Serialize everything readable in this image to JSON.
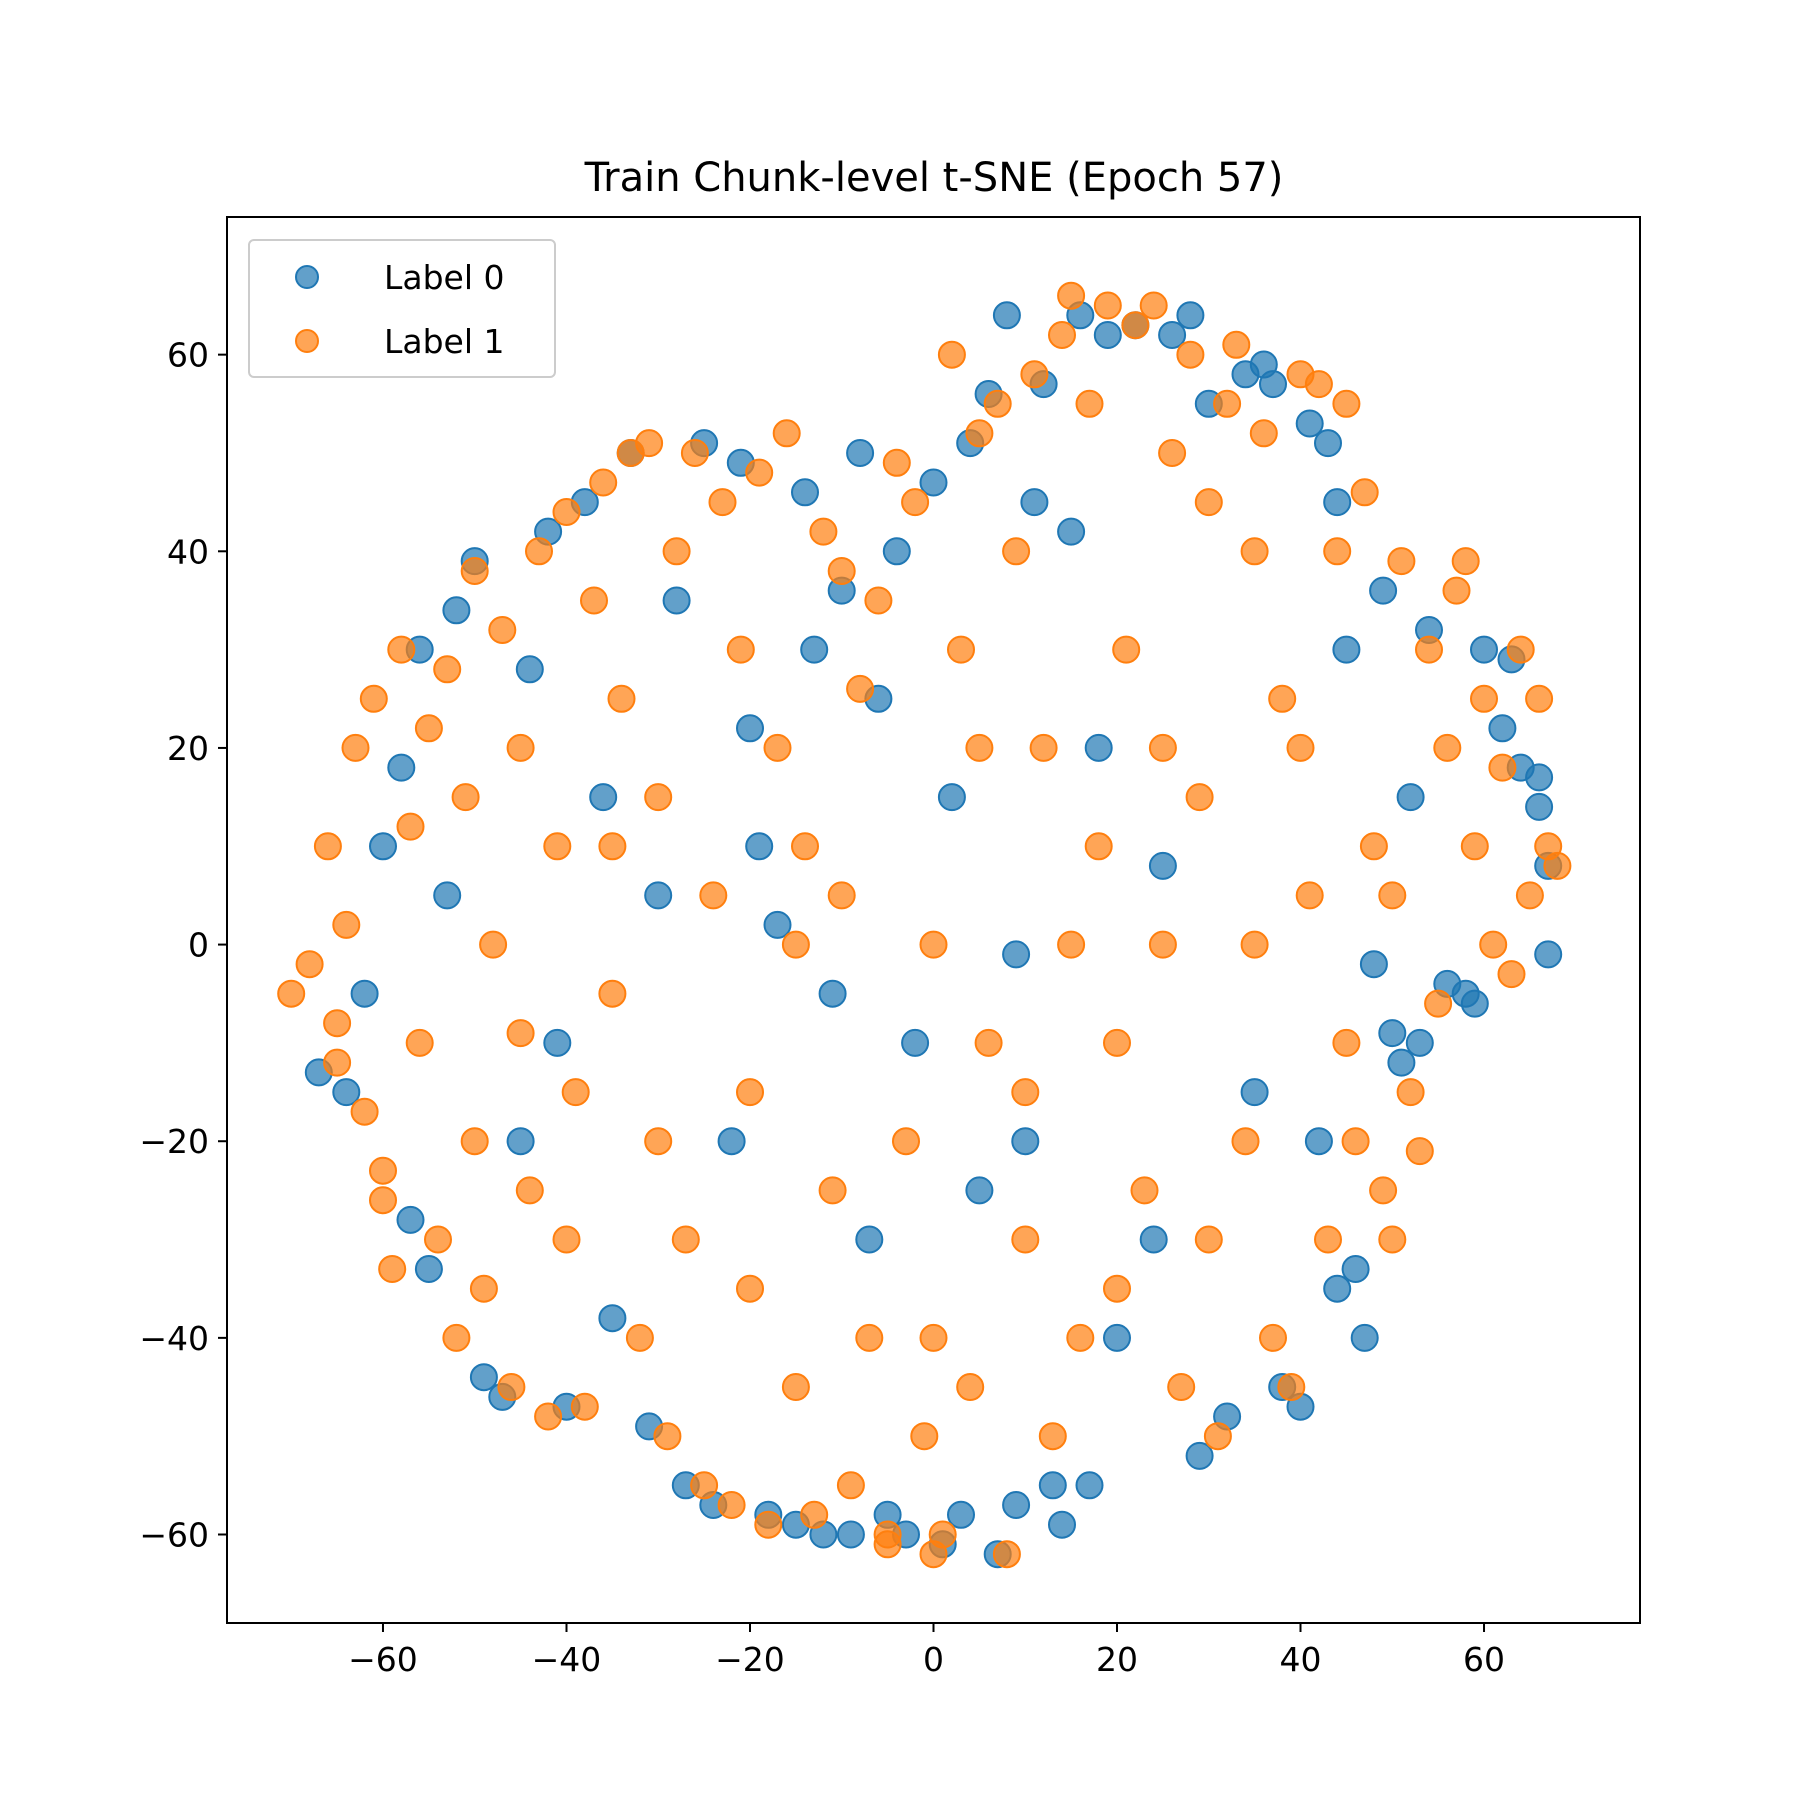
{
  "chart_data": {
    "type": "scatter",
    "title": "Train Chunk-level t-SNE (Epoch 57)",
    "xlabel": "",
    "ylabel": "",
    "xlim": [
      -77,
      77
    ],
    "ylim": [
      -69,
      74
    ],
    "xticks": [
      -60,
      -40,
      -20,
      0,
      20,
      40,
      60
    ],
    "yticks": [
      -60,
      -40,
      -20,
      0,
      20,
      40,
      60
    ],
    "xtick_labels": [
      "−60",
      "−40",
      "−20",
      "0",
      "20",
      "40",
      "60"
    ],
    "ytick_labels": [
      "−60",
      "−40",
      "−20",
      "0",
      "20",
      "40",
      "60"
    ],
    "grid": false,
    "legend_position": "upper-left",
    "series": [
      {
        "name": "Label 0",
        "color": "#1f77b4",
        "points": [
          [
            -67,
            -13
          ],
          [
            -64,
            -15
          ],
          [
            -62,
            -5
          ],
          [
            -60,
            10
          ],
          [
            -58,
            18
          ],
          [
            -57,
            -28
          ],
          [
            -56,
            30
          ],
          [
            -55,
            -33
          ],
          [
            -53,
            5
          ],
          [
            -52,
            34
          ],
          [
            -50,
            39
          ],
          [
            -49,
            -44
          ],
          [
            -47,
            -46
          ],
          [
            -45,
            -20
          ],
          [
            -44,
            28
          ],
          [
            -42,
            42
          ],
          [
            -41,
            -10
          ],
          [
            -40,
            -47
          ],
          [
            -38,
            45
          ],
          [
            -36,
            15
          ],
          [
            -35,
            -38
          ],
          [
            -33,
            50
          ],
          [
            -31,
            -49
          ],
          [
            -30,
            5
          ],
          [
            -28,
            35
          ],
          [
            -27,
            -55
          ],
          [
            -25,
            51
          ],
          [
            -24,
            -57
          ],
          [
            -22,
            -20
          ],
          [
            -21,
            49
          ],
          [
            -20,
            22
          ],
          [
            -18,
            -58
          ],
          [
            -17,
            2
          ],
          [
            -15,
            -59
          ],
          [
            -14,
            46
          ],
          [
            -13,
            30
          ],
          [
            -12,
            -60
          ],
          [
            -11,
            -5
          ],
          [
            -10,
            36
          ],
          [
            -9,
            -60
          ],
          [
            -8,
            50
          ],
          [
            -7,
            -30
          ],
          [
            -6,
            25
          ],
          [
            -5,
            -58
          ],
          [
            -4,
            40
          ],
          [
            -3,
            -60
          ],
          [
            -2,
            -10
          ],
          [
            0,
            47
          ],
          [
            1,
            -61
          ],
          [
            2,
            15
          ],
          [
            3,
            -58
          ],
          [
            4,
            51
          ],
          [
            5,
            -25
          ],
          [
            6,
            56
          ],
          [
            7,
            -62
          ],
          [
            8,
            64
          ],
          [
            9,
            -57
          ],
          [
            10,
            -20
          ],
          [
            11,
            45
          ],
          [
            12,
            57
          ],
          [
            13,
            -55
          ],
          [
            14,
            -59
          ],
          [
            15,
            42
          ],
          [
            16,
            64
          ],
          [
            17,
            -55
          ],
          [
            18,
            20
          ],
          [
            19,
            62
          ],
          [
            20,
            -40
          ],
          [
            22,
            63
          ],
          [
            24,
            -30
          ],
          [
            26,
            62
          ],
          [
            28,
            64
          ],
          [
            29,
            -52
          ],
          [
            30,
            55
          ],
          [
            32,
            -48
          ],
          [
            34,
            58
          ],
          [
            35,
            -15
          ],
          [
            36,
            59
          ],
          [
            37,
            57
          ],
          [
            38,
            -45
          ],
          [
            40,
            -47
          ],
          [
            41,
            53
          ],
          [
            42,
            -20
          ],
          [
            43,
            51
          ],
          [
            44,
            -35
          ],
          [
            45,
            30
          ],
          [
            46,
            -33
          ],
          [
            47,
            -40
          ],
          [
            48,
            -2
          ],
          [
            49,
            36
          ],
          [
            50,
            -9
          ],
          [
            51,
            -12
          ],
          [
            52,
            15
          ],
          [
            54,
            32
          ],
          [
            56,
            -4
          ],
          [
            58,
            -5
          ],
          [
            60,
            30
          ],
          [
            62,
            22
          ],
          [
            64,
            18
          ],
          [
            66,
            17
          ],
          [
            66,
            14
          ],
          [
            67,
            -1
          ],
          [
            67,
            8
          ],
          [
            63,
            29
          ],
          [
            59,
            -6
          ],
          [
            53,
            -10
          ],
          [
            44,
            45
          ],
          [
            9,
            -1
          ],
          [
            -19,
            10
          ],
          [
            25,
            8
          ]
        ]
      },
      {
        "name": "Label 1",
        "color": "#ff7f0e",
        "points": [
          [
            -70,
            -5
          ],
          [
            -68,
            -2
          ],
          [
            -66,
            10
          ],
          [
            -65,
            -8
          ],
          [
            -64,
            2
          ],
          [
            -63,
            20
          ],
          [
            -62,
            -17
          ],
          [
            -61,
            25
          ],
          [
            -60,
            -26
          ],
          [
            -59,
            -33
          ],
          [
            -58,
            30
          ],
          [
            -57,
            12
          ],
          [
            -56,
            -10
          ],
          [
            -55,
            22
          ],
          [
            -54,
            -30
          ],
          [
            -53,
            28
          ],
          [
            -52,
            -40
          ],
          [
            -51,
            15
          ],
          [
            -50,
            38
          ],
          [
            -49,
            -35
          ],
          [
            -48,
            0
          ],
          [
            -47,
            32
          ],
          [
            -46,
            -45
          ],
          [
            -45,
            20
          ],
          [
            -44,
            -25
          ],
          [
            -43,
            40
          ],
          [
            -42,
            -48
          ],
          [
            -41,
            10
          ],
          [
            -40,
            44
          ],
          [
            -39,
            -15
          ],
          [
            -38,
            -47
          ],
          [
            -37,
            35
          ],
          [
            -36,
            47
          ],
          [
            -35,
            -5
          ],
          [
            -34,
            25
          ],
          [
            -33,
            50
          ],
          [
            -32,
            -40
          ],
          [
            -31,
            51
          ],
          [
            -30,
            15
          ],
          [
            -29,
            -50
          ],
          [
            -28,
            40
          ],
          [
            -27,
            -30
          ],
          [
            -26,
            50
          ],
          [
            -25,
            -55
          ],
          [
            -24,
            5
          ],
          [
            -23,
            45
          ],
          [
            -22,
            -57
          ],
          [
            -21,
            30
          ],
          [
            -20,
            -15
          ],
          [
            -19,
            48
          ],
          [
            -18,
            -59
          ],
          [
            -17,
            20
          ],
          [
            -16,
            52
          ],
          [
            -15,
            -45
          ],
          [
            -14,
            10
          ],
          [
            -13,
            -58
          ],
          [
            -12,
            42
          ],
          [
            -11,
            -25
          ],
          [
            -10,
            38
          ],
          [
            -9,
            -55
          ],
          [
            -8,
            26
          ],
          [
            -7,
            -40
          ],
          [
            -6,
            35
          ],
          [
            -5,
            -60
          ],
          [
            -4,
            49
          ],
          [
            -3,
            -20
          ],
          [
            -2,
            45
          ],
          [
            -1,
            -50
          ],
          [
            0,
            0
          ],
          [
            1,
            -60
          ],
          [
            2,
            60
          ],
          [
            3,
            30
          ],
          [
            4,
            -45
          ],
          [
            5,
            52
          ],
          [
            6,
            -10
          ],
          [
            7,
            55
          ],
          [
            8,
            -62
          ],
          [
            9,
            40
          ],
          [
            10,
            -30
          ],
          [
            11,
            58
          ],
          [
            12,
            20
          ],
          [
            13,
            -50
          ],
          [
            14,
            62
          ],
          [
            15,
            66
          ],
          [
            16,
            -40
          ],
          [
            17,
            55
          ],
          [
            18,
            10
          ],
          [
            19,
            65
          ],
          [
            20,
            -35
          ],
          [
            21,
            30
          ],
          [
            22,
            63
          ],
          [
            23,
            -25
          ],
          [
            24,
            65
          ],
          [
            25,
            0
          ],
          [
            26,
            50
          ],
          [
            27,
            -45
          ],
          [
            28,
            60
          ],
          [
            29,
            15
          ],
          [
            30,
            45
          ],
          [
            31,
            -50
          ],
          [
            32,
            55
          ],
          [
            33,
            61
          ],
          [
            34,
            -20
          ],
          [
            35,
            40
          ],
          [
            36,
            52
          ],
          [
            37,
            -40
          ],
          [
            38,
            25
          ],
          [
            39,
            -45
          ],
          [
            40,
            58
          ],
          [
            41,
            5
          ],
          [
            42,
            57
          ],
          [
            43,
            -30
          ],
          [
            44,
            40
          ],
          [
            45,
            55
          ],
          [
            46,
            -20
          ],
          [
            47,
            46
          ],
          [
            48,
            10
          ],
          [
            49,
            -25
          ],
          [
            50,
            -30
          ],
          [
            51,
            39
          ],
          [
            52,
            -15
          ],
          [
            53,
            -21
          ],
          [
            54,
            30
          ],
          [
            55,
            -6
          ],
          [
            56,
            20
          ],
          [
            57,
            36
          ],
          [
            58,
            39
          ],
          [
            59,
            10
          ],
          [
            60,
            25
          ],
          [
            61,
            0
          ],
          [
            62,
            18
          ],
          [
            63,
            -3
          ],
          [
            64,
            30
          ],
          [
            65,
            5
          ],
          [
            66,
            25
          ],
          [
            67,
            10
          ],
          [
            68,
            8
          ],
          [
            -5,
            -61
          ],
          [
            0,
            -62
          ],
          [
            -65,
            -12
          ],
          [
            -60,
            -23
          ],
          [
            -45,
            -9
          ],
          [
            -30,
            -20
          ],
          [
            -15,
            0
          ],
          [
            5,
            20
          ],
          [
            15,
            0
          ],
          [
            25,
            20
          ],
          [
            35,
            0
          ],
          [
            45,
            -10
          ],
          [
            -20,
            -35
          ],
          [
            -40,
            -30
          ],
          [
            10,
            -15
          ],
          [
            20,
            -10
          ],
          [
            30,
            -30
          ],
          [
            -10,
            5
          ],
          [
            40,
            20
          ],
          [
            -50,
            -20
          ],
          [
            -35,
            10
          ],
          [
            50,
            5
          ],
          [
            0,
            -40
          ]
        ]
      }
    ]
  }
}
